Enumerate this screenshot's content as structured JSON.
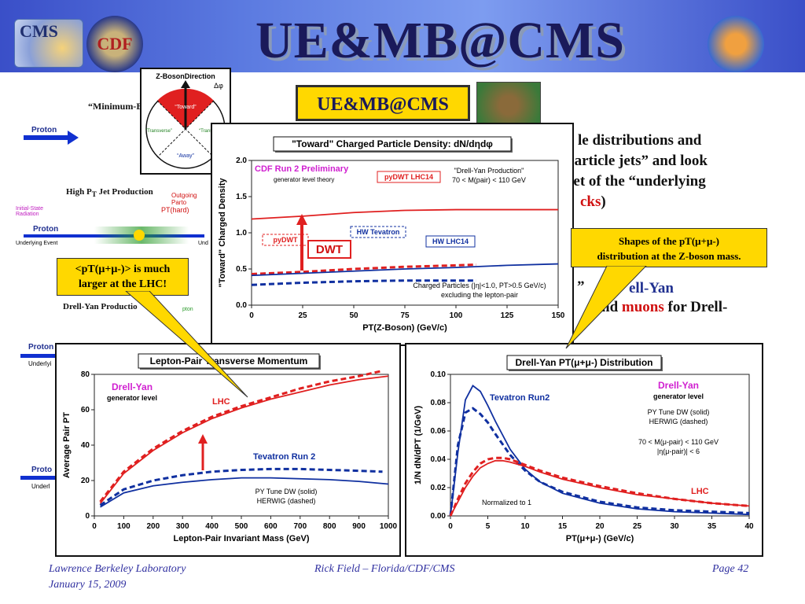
{
  "slide": {
    "title": "UE&MB@CMS",
    "ue_box": "UE&MB@CMS",
    "logos": {
      "cms": "CMS",
      "cdf": "CDF"
    }
  },
  "diagram": {
    "zdir": "Z-BosonDirection",
    "dphi": "Δφ",
    "toward": "“Toward”",
    "transverse_l": "“Transverse”",
    "transverse_r": "“Transverse”",
    "away": "“Away”"
  },
  "left_bg": {
    "minbias": "“Minimum-B",
    "proton1": "Proton",
    "highpt": "High P",
    "highpt_sub": "T",
    "highpt_rest": " Jet Production",
    "outgoing": "Outgoing Parto",
    "pthard": "PT(hard)",
    "isr": "Initial-State Radiation",
    "proton2": "Proton",
    "ue": "Underlying Event",
    "und": "Und",
    "dy": "Drell-Yan Productio",
    "lepton": "pton",
    "proton3": "Proton",
    "underlyi": "Underlyi",
    "proton4": "Proto",
    "underl": "Underl"
  },
  "right_bg": {
    "l1": "le distributions and",
    "l2": " particle jets” and look",
    "l3": "set of the “underlying",
    "l4a": "cks",
    "l4b": ")",
    "l5": "ell-Yan",
    "l6a": "nd ",
    "l6b": "muons",
    "l6c": " for Drell-",
    "l7": "”"
  },
  "callouts": {
    "left": [
      "<pT(μ+μ-)> is much",
      "larger at the LHC!"
    ],
    "right": [
      "Shapes of the pT(μ+μ-)",
      "distribution at the Z-boson mass."
    ],
    "dwt": "DWT"
  },
  "footer": {
    "left1": "Lawrence Berkeley Laboratory",
    "left2": "January 15, 2009",
    "center": "Rick Field – Florida/CDF/CMS",
    "right": "Page 42"
  },
  "colors": {
    "lhc": "#e02020",
    "tevatron": "#1030a0",
    "banner": "#4a66d8",
    "callout": "#ffd800"
  },
  "chart_data": [
    {
      "type": "line",
      "title": "\"Toward\" Charged Particle Density: dN/dηdφ",
      "xlabel": "PT(Z-Boson)  (GeV/c)",
      "ylabel": "\"Toward\" Charged Density",
      "xlim": [
        0,
        150
      ],
      "ylim": [
        0,
        2.0
      ],
      "xticks": [
        0,
        25,
        50,
        75,
        100,
        125,
        150
      ],
      "yticks": [
        0.0,
        0.5,
        1.0,
        1.5,
        2.0
      ],
      "annotations": {
        "cdf": "CDF Run 2 Preliminary",
        "gen": "generator level theory",
        "dy": "\"Drell-Yan Production\"",
        "mass": "70 < M(pair) < 110 GeV",
        "charged": "Charged Particles (|η|<1.0, PT>0.5 GeV/c)",
        "excl": "excluding the lepton-pair"
      },
      "series": [
        {
          "name": "pyDWT LHC14",
          "color": "#e02020",
          "dash": false,
          "x": [
            0,
            25,
            50,
            75,
            100,
            125,
            150
          ],
          "y": [
            1.19,
            1.23,
            1.28,
            1.31,
            1.32,
            1.32,
            1.32
          ]
        },
        {
          "name": "pyDWT",
          "color": "#e02020",
          "dash": true,
          "x": [
            0,
            25,
            50,
            75,
            100,
            110
          ],
          "y": [
            0.43,
            0.46,
            0.5,
            0.53,
            0.55,
            0.56
          ]
        },
        {
          "name": "HW Tevatron",
          "color": "#1030a0",
          "dash": true,
          "x": [
            0,
            25,
            50,
            75,
            110
          ],
          "y": [
            0.28,
            0.31,
            0.33,
            0.34,
            0.34
          ]
        },
        {
          "name": "HW LHC14",
          "color": "#1030a0",
          "dash": false,
          "x": [
            0,
            25,
            50,
            75,
            100,
            125,
            150
          ],
          "y": [
            0.41,
            0.44,
            0.47,
            0.5,
            0.52,
            0.55,
            0.57
          ]
        }
      ]
    },
    {
      "type": "line",
      "title": "Lepton-Pair Transverse Momentum",
      "xlabel": "Lepton-Pair Invariant Mass  (GeV)",
      "ylabel": "Average Pair PT",
      "xlim": [
        0,
        1000
      ],
      "ylim": [
        0,
        80
      ],
      "xticks": [
        0,
        100,
        200,
        300,
        400,
        500,
        600,
        700,
        800,
        900,
        1000
      ],
      "yticks": [
        0,
        20,
        40,
        60,
        80
      ],
      "annotations": {
        "dy": "Drell-Yan",
        "gen": "generator level",
        "lhc": "LHC",
        "tev": "Tevatron Run 2",
        "tune": "PY Tune DW (solid)",
        "herwig": "HERWIG (dashed)"
      },
      "series": [
        {
          "name": "LHC",
          "color": "#e02020",
          "dash": false,
          "x": [
            20,
            100,
            200,
            300,
            400,
            500,
            600,
            700,
            800,
            900,
            1000
          ],
          "y": [
            7,
            24,
            37,
            47,
            55,
            61,
            66,
            70,
            74,
            77,
            79
          ]
        },
        {
          "name": "LHC HERWIG",
          "color": "#e02020",
          "dash": true,
          "x": [
            20,
            100,
            200,
            300,
            400,
            500,
            600,
            700,
            800,
            900,
            980
          ],
          "y": [
            8,
            25,
            38,
            48,
            56,
            62,
            67,
            72,
            76,
            79,
            82
          ]
        },
        {
          "name": "Tevatron Run 2",
          "color": "#1030a0",
          "dash": false,
          "x": [
            20,
            100,
            200,
            300,
            400,
            500,
            600,
            700,
            800,
            900,
            1000
          ],
          "y": [
            5,
            13,
            17,
            19,
            20.5,
            21.5,
            21.5,
            21,
            20.5,
            19.5,
            18
          ]
        },
        {
          "name": "Tevatron HERWIG",
          "color": "#1030a0",
          "dash": true,
          "x": [
            20,
            100,
            200,
            300,
            400,
            500,
            600,
            700,
            800,
            900,
            980
          ],
          "y": [
            6,
            15,
            20,
            23,
            25,
            26,
            26.5,
            26.5,
            26,
            25.5,
            25
          ]
        }
      ]
    },
    {
      "type": "line",
      "title": "Drell-Yan PT(μ+μ-) Distribution",
      "xlabel": "PT(μ+μ-)  (GeV/c)",
      "ylabel": "1/N dN/dPT (1/GeV)",
      "xlim": [
        0,
        40
      ],
      "ylim": [
        0,
        0.1
      ],
      "xticks": [
        0,
        5,
        10,
        15,
        20,
        25,
        30,
        35,
        40
      ],
      "yticks": [
        0.0,
        0.02,
        0.04,
        0.06,
        0.08,
        0.1
      ],
      "annotations": {
        "dy": "Drell-Yan",
        "gen": "generator level",
        "tev": "Tevatron Run2",
        "tune": "PY Tune DW (solid)",
        "herwig": "HERWIG (dashed)",
        "mass": "70 < M(μ-pair) < 110 GeV",
        "eta": "|η(μ-pair)| < 6",
        "lhc": "LHC",
        "norm": "Normalized to 1"
      },
      "series": [
        {
          "name": "Tevatron Run2",
          "color": "#1030a0",
          "dash": false,
          "x": [
            0,
            1,
            2,
            3,
            4,
            5,
            6,
            8,
            10,
            12,
            15,
            20,
            25,
            30,
            35,
            40
          ],
          "y": [
            0,
            0.045,
            0.082,
            0.092,
            0.088,
            0.078,
            0.067,
            0.047,
            0.033,
            0.024,
            0.016,
            0.009,
            0.005,
            0.003,
            0.002,
            0.001
          ]
        },
        {
          "name": "Tevatron HERWIG",
          "color": "#1030a0",
          "dash": true,
          "x": [
            0,
            1,
            2,
            3,
            4,
            5,
            6,
            8,
            10,
            12,
            15,
            20,
            25,
            30,
            35,
            40
          ],
          "y": [
            0,
            0.05,
            0.073,
            0.076,
            0.072,
            0.066,
            0.058,
            0.043,
            0.032,
            0.024,
            0.017,
            0.01,
            0.006,
            0.004,
            0.003,
            0.002
          ]
        },
        {
          "name": "LHC",
          "color": "#e02020",
          "dash": false,
          "x": [
            0,
            1,
            2,
            3,
            4,
            5,
            6,
            7,
            8,
            10,
            12,
            15,
            20,
            25,
            30,
            35,
            40
          ],
          "y": [
            0,
            0.01,
            0.02,
            0.028,
            0.034,
            0.037,
            0.039,
            0.039,
            0.038,
            0.035,
            0.031,
            0.026,
            0.02,
            0.015,
            0.012,
            0.009,
            0.007
          ]
        },
        {
          "name": "LHC HERWIG",
          "color": "#e02020",
          "dash": true,
          "x": [
            0,
            1,
            2,
            3,
            4,
            5,
            6,
            7,
            8,
            10,
            12,
            15,
            20,
            25,
            30,
            35,
            40
          ],
          "y": [
            0,
            0.012,
            0.023,
            0.031,
            0.037,
            0.04,
            0.041,
            0.041,
            0.04,
            0.036,
            0.032,
            0.027,
            0.021,
            0.016,
            0.012,
            0.009,
            0.007
          ]
        }
      ]
    }
  ]
}
